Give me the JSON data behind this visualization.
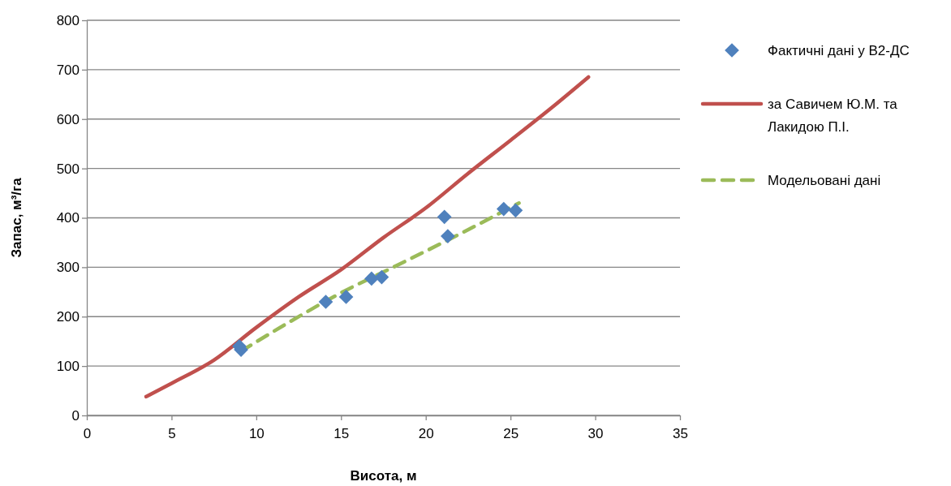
{
  "chart_data": {
    "type": "scatter",
    "xlabel": "Висота, м",
    "ylabel": "Запас, м³/га",
    "xlim": [
      0,
      35
    ],
    "ylim": [
      0,
      800
    ],
    "xticks": [
      0,
      5,
      10,
      15,
      20,
      25,
      30,
      35
    ],
    "yticks": [
      0,
      100,
      200,
      300,
      400,
      500,
      600,
      700,
      800
    ],
    "grid": "y",
    "legend": "right",
    "series": [
      {
        "name": "Фактичні дані у В2-ДС",
        "marker": "diamond",
        "color": "#4f81bd",
        "x": [
          9.0,
          9.1,
          14.1,
          15.3,
          16.8,
          17.4,
          21.1,
          21.3,
          24.6,
          25.3
        ],
        "values": [
          140,
          133,
          230,
          240,
          277,
          280,
          402,
          363,
          418,
          415
        ]
      },
      {
        "name": "за Савичем Ю.М. та Лакидою П.І.",
        "type": "line",
        "line_style": "solid",
        "color": "#c0504d",
        "x": [
          3.5,
          5,
          7.5,
          10,
          12.5,
          15,
          17.5,
          20,
          22.5,
          25,
          27.5,
          29.6
        ],
        "values": [
          38,
          65,
          112,
          178,
          240,
          295,
          360,
          420,
          490,
          557,
          625,
          685
        ]
      },
      {
        "name": "Модельовані дані",
        "type": "line",
        "line_style": "dashed",
        "color": "#9bbb59",
        "x": [
          9.1,
          12,
          15.1,
          17.9,
          21.3,
          25.5
        ],
        "values": [
          130,
          190,
          250,
          297,
          355,
          430
        ]
      }
    ]
  }
}
